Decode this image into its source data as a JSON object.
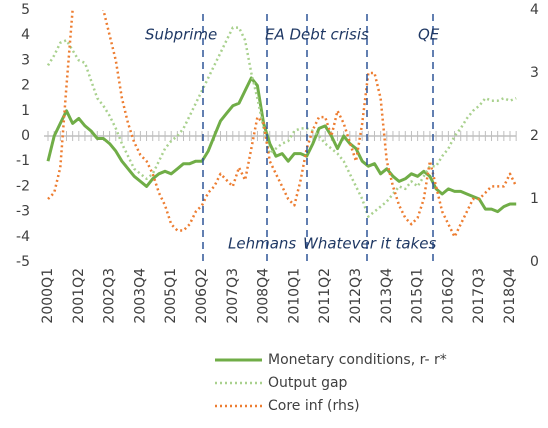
{
  "chart_data": {
    "type": "line",
    "categories": [
      "2000Q1",
      null,
      null,
      null,
      null,
      "2001Q2",
      null,
      null,
      null,
      null,
      "2002Q3",
      null,
      null,
      null,
      null,
      "2003Q4",
      null,
      null,
      null,
      null,
      "2005Q1",
      null,
      null,
      null,
      null,
      "2006Q2",
      null,
      null,
      null,
      null,
      "2007Q3",
      null,
      null,
      null,
      null,
      "2008Q4",
      null,
      null,
      null,
      null,
      "2010Q1",
      null,
      null,
      null,
      null,
      "2011Q2",
      null,
      null,
      null,
      null,
      "2012Q3",
      null,
      null,
      null,
      null,
      "2013Q4",
      null,
      null,
      null,
      null,
      "2015Q1",
      null,
      null,
      null,
      null,
      "2016Q2",
      null,
      null,
      null,
      null,
      "2017Q3",
      null,
      null,
      null,
      null,
      "2018Q4",
      null
    ],
    "series": [
      {
        "name": "Monetary conditions, r- r*",
        "color": "#70ad47",
        "style": "solid",
        "values": [
          -1.0,
          0,
          0.5,
          1.0,
          0.5,
          0.7,
          0.4,
          0.2,
          -0.1,
          -0.1,
          -0.3,
          -0.6,
          -1.0,
          -1.3,
          -1.6,
          -1.8,
          -2.0,
          -1.7,
          -1.5,
          -1.4,
          -1.5,
          -1.3,
          -1.1,
          -1.1,
          -1.0,
          -1.0,
          -0.6,
          0.0,
          0.6,
          0.9,
          1.2,
          1.3,
          1.8,
          2.3,
          2.0,
          0.5,
          -0.3,
          -0.8,
          -0.7,
          -1.0,
          -0.7,
          -0.7,
          -0.8,
          -0.3,
          0.3,
          0.4,
          0.0,
          -0.5,
          0.0,
          -0.3,
          -0.5,
          -1.0,
          -1.2,
          -1.1,
          -1.5,
          -1.3,
          -1.6,
          -1.8,
          -1.7,
          -1.5,
          -1.6,
          -1.4,
          -1.6,
          -2.1,
          -2.3,
          -2.1,
          -2.2,
          -2.2,
          -2.3,
          -2.4,
          -2.5,
          -2.9,
          -2.9,
          -3.0,
          -2.8,
          -2.7,
          -2.7
        ]
      },
      {
        "name": "Output gap",
        "color": "#a9d18e",
        "style": "dotted",
        "values": [
          2.8,
          3.2,
          3.7,
          3.8,
          3.4,
          3.0,
          2.9,
          2.2,
          1.5,
          1.2,
          0.8,
          0.3,
          -0.3,
          -0.8,
          -1.3,
          -1.5,
          -1.7,
          -1.5,
          -1.0,
          -0.5,
          -0.2,
          0.0,
          0.3,
          0.8,
          1.3,
          1.8,
          2.3,
          2.8,
          3.3,
          3.8,
          4.3,
          4.3,
          3.8,
          2.5,
          1.5,
          0.3,
          -0.7,
          -0.5,
          -0.3,
          -0.2,
          0.2,
          0.3,
          0.3,
          0.2,
          0.0,
          -0.3,
          -0.5,
          -0.7,
          -1.0,
          -1.5,
          -2.0,
          -2.5,
          -3.2,
          -3.0,
          -2.8,
          -2.6,
          -2.3,
          -2.0,
          -2.1,
          -1.8,
          -2.0,
          -1.6,
          -1.2,
          -1.2,
          -0.8,
          -0.5,
          0.0,
          0.3,
          0.7,
          1.0,
          1.2,
          1.5,
          1.4,
          1.4,
          1.5,
          1.4,
          1.5
        ]
      },
      {
        "name": "Core inf (rhs)",
        "color": "#ed7d31",
        "style": "dotted",
        "axis": "y2",
        "values": [
          1.0,
          1.1,
          1.5,
          2.8,
          4.0,
          4.6,
          4.5,
          4.3,
          4.2,
          4.0,
          3.6,
          3.2,
          2.6,
          2.2,
          1.9,
          1.7,
          1.6,
          1.4,
          1.1,
          0.9,
          0.6,
          0.5,
          0.5,
          0.6,
          0.8,
          0.9,
          1.1,
          1.2,
          1.4,
          1.3,
          1.2,
          1.5,
          1.3,
          1.8,
          2.3,
          2.2,
          1.6,
          1.4,
          1.2,
          1.0,
          0.9,
          1.3,
          1.8,
          2.1,
          2.3,
          2.3,
          2.0,
          2.4,
          2.2,
          1.9,
          1.6,
          2.2,
          3.0,
          3.0,
          2.6,
          1.6,
          1.2,
          0.9,
          0.7,
          0.6,
          0.7,
          1.0,
          1.6,
          1.2,
          0.8,
          0.6,
          0.4,
          0.6,
          0.8,
          1.0,
          1.0,
          1.1,
          1.2,
          1.2,
          1.2,
          1.4,
          1.2
        ]
      }
    ],
    "ylim": [
      -5,
      5
    ],
    "yticks": [
      -5,
      -4,
      -3,
      -2,
      -1,
      0,
      1,
      2,
      3,
      4,
      5
    ],
    "y2lim": [
      0,
      4
    ],
    "y2ticks": [
      0,
      1,
      2,
      3,
      4
    ],
    "annotations": [
      "Subprime",
      "EA Debt crisis",
      "QE",
      "Lehmans",
      "Whatever it takes"
    ]
  }
}
